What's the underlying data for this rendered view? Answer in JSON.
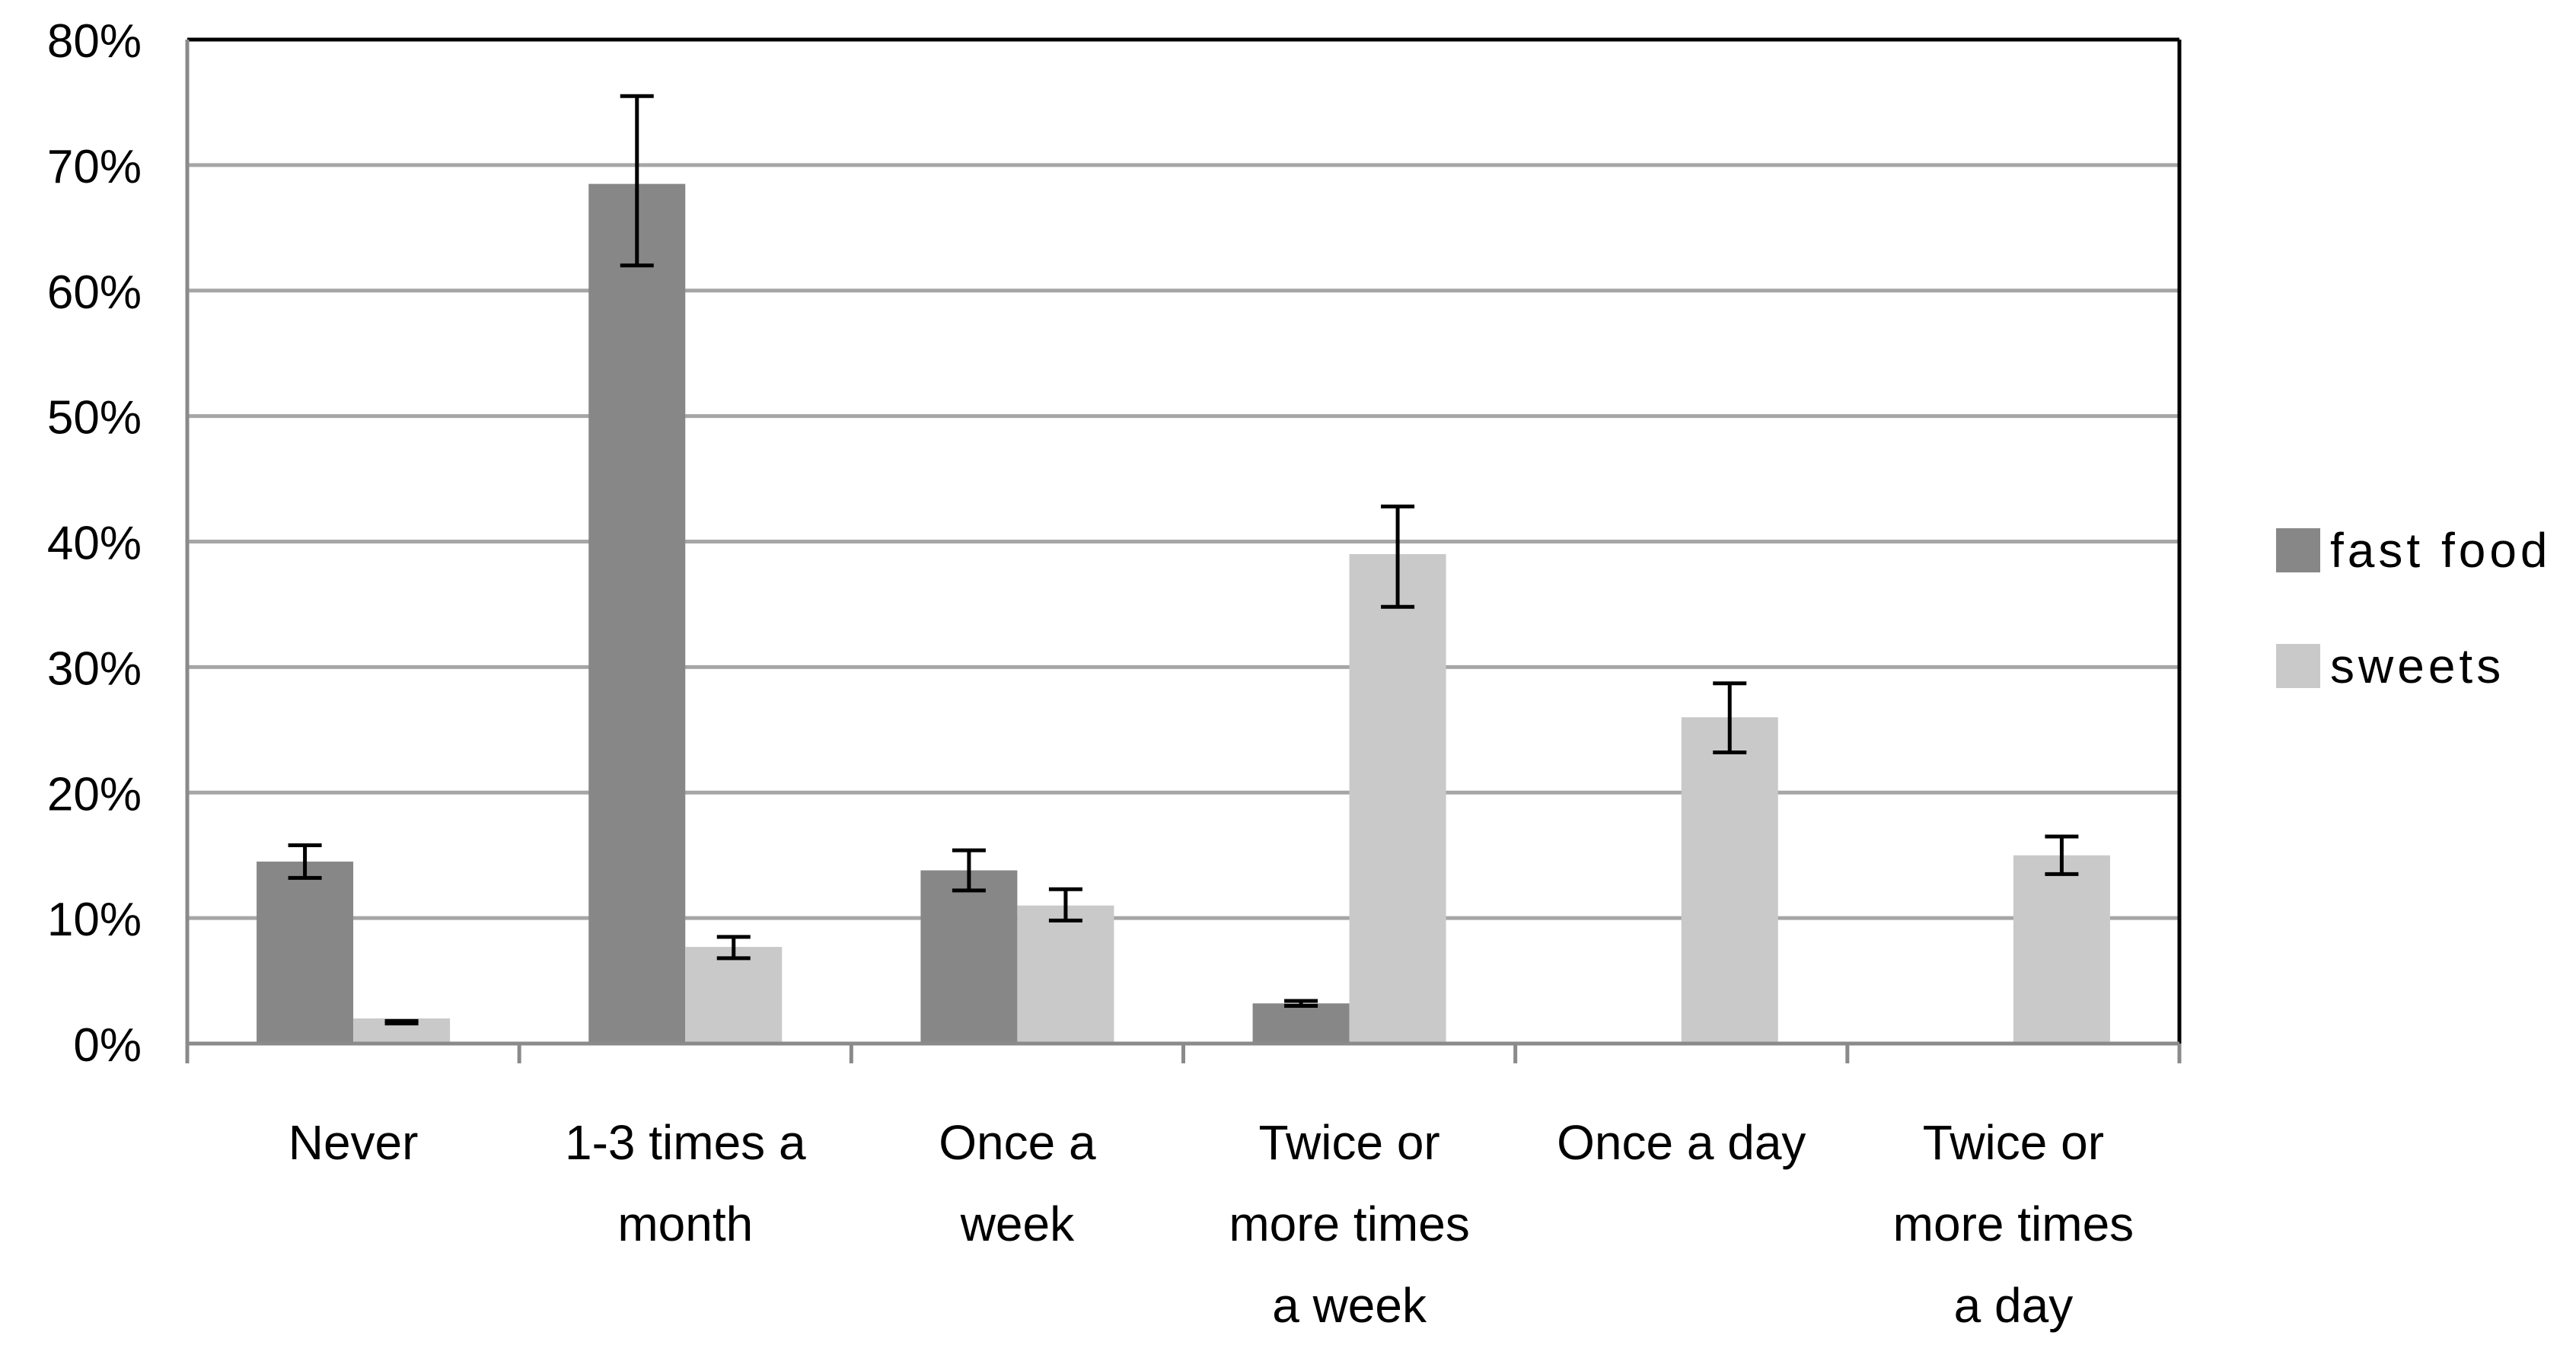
{
  "chart_data": {
    "type": "bar",
    "title": "",
    "xlabel": "",
    "ylabel": "",
    "ylim": [
      0,
      0.8
    ],
    "grid": true,
    "legend_position": "right",
    "y_ticks": [
      {
        "value": 0.0,
        "label": "0%"
      },
      {
        "value": 0.1,
        "label": "10%"
      },
      {
        "value": 0.2,
        "label": "20%"
      },
      {
        "value": 0.3,
        "label": "30%"
      },
      {
        "value": 0.4,
        "label": "40%"
      },
      {
        "value": 0.5,
        "label": "50%"
      },
      {
        "value": 0.6,
        "label": "60%"
      },
      {
        "value": 0.7,
        "label": "70%"
      },
      {
        "value": 0.8,
        "label": "80%"
      }
    ],
    "categories": [
      {
        "name": "Never",
        "lines": [
          "Never"
        ]
      },
      {
        "name": "1-3 times a month",
        "lines": [
          "1-3 times a",
          "month"
        ]
      },
      {
        "name": "Once a week",
        "lines": [
          "Once a",
          "week"
        ]
      },
      {
        "name": "Twice or more times a week",
        "lines": [
          "Twice or",
          "more times",
          "a week"
        ]
      },
      {
        "name": "Once a day",
        "lines": [
          "Once a day"
        ]
      },
      {
        "name": "Twice or more times a day",
        "lines": [
          "Twice or",
          "more times",
          "a day"
        ]
      }
    ],
    "series": [
      {
        "name": "fast food",
        "color": "#878787",
        "values": [
          0.145,
          0.685,
          0.138,
          0.032,
          0.0,
          0.0
        ],
        "err_low": [
          0.132,
          0.62,
          0.122,
          0.03,
          null,
          null
        ],
        "err_high": [
          0.158,
          0.755,
          0.154,
          0.034,
          null,
          null
        ]
      },
      {
        "name": "sweets",
        "color": "#c9c9c9",
        "values": [
          0.02,
          0.077,
          0.11,
          0.39,
          0.26,
          0.15
        ],
        "err_low": [
          0.016,
          0.068,
          0.098,
          0.348,
          0.232,
          0.135
        ],
        "err_high": [
          0.018,
          0.085,
          0.123,
          0.428,
          0.287,
          0.165
        ]
      }
    ],
    "legend": [
      {
        "label": "fast food",
        "color": "#878787"
      },
      {
        "label": "sweets",
        "color": "#c9c9c9"
      }
    ],
    "colors": {
      "gridline": "#a6a6a6",
      "frame": "#000000",
      "axis": "#8a8a8a",
      "errorbar": "#000000"
    }
  }
}
